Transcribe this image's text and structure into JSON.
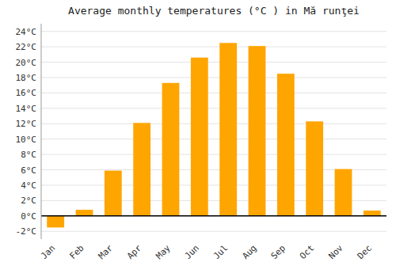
{
  "chart_data": {
    "type": "bar",
    "title": "Average monthly temperatures (°C ) in Mă runţei",
    "categories": [
      "Jan",
      "Feb",
      "Mar",
      "Apr",
      "May",
      "Jun",
      "Jul",
      "Aug",
      "Sep",
      "Oct",
      "Nov",
      "Dec"
    ],
    "values": [
      -1.5,
      0.8,
      5.9,
      12.1,
      17.3,
      20.6,
      22.5,
      22.1,
      18.5,
      12.3,
      6.1,
      0.7
    ],
    "color": "#FFA500",
    "ylim": [
      -3,
      25
    ],
    "yticks": [
      {
        "value": -2,
        "label": "-2°C"
      },
      {
        "value": 0,
        "label": "0°C"
      },
      {
        "value": 2,
        "label": "2°C"
      },
      {
        "value": 4,
        "label": "4°C"
      },
      {
        "value": 6,
        "label": "6°C"
      },
      {
        "value": 8,
        "label": "8°C"
      },
      {
        "value": 10,
        "label": "10°C"
      },
      {
        "value": 12,
        "label": "12°C"
      },
      {
        "value": 14,
        "label": "14°C"
      },
      {
        "value": 16,
        "label": "16°C"
      },
      {
        "value": 18,
        "label": "18°C"
      },
      {
        "value": 20,
        "label": "20°C"
      },
      {
        "value": 22,
        "label": "22°C"
      },
      {
        "value": 24,
        "label": "24°C"
      }
    ],
    "grid": true
  }
}
